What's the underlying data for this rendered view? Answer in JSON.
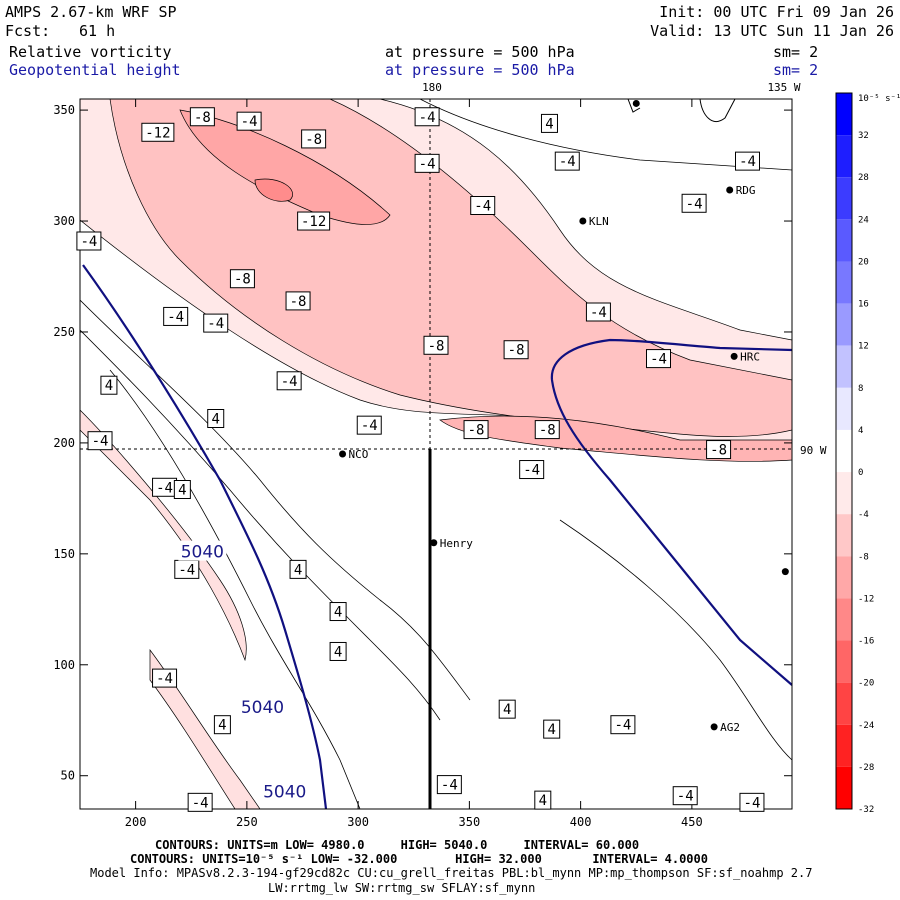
{
  "header": {
    "model": "AMPS 2.67-km WRF SP",
    "forecast_label": "Fcst:",
    "forecast_hours": "61 h",
    "init": "Init: 00 UTC Fri 09 Jan 26",
    "valid": "Valid: 13 UTC Sun 11 Jan 26",
    "field1": {
      "name": "Relative vorticity",
      "level": "at pressure =  500 hPa",
      "sm": "sm= 2"
    },
    "field2": {
      "name": "Geopotential height",
      "level": "at pressure =  500 hPa",
      "sm": "sm= 2"
    }
  },
  "axes": {
    "x_ticks": [
      "200",
      "250",
      "300",
      "350",
      "400",
      "450"
    ],
    "y_ticks": [
      "350",
      "300",
      "250",
      "200",
      "150",
      "100",
      "50"
    ],
    "x_range": [
      175,
      495
    ],
    "y_range": [
      35,
      355
    ]
  },
  "meridians": {
    "top_180": "180",
    "top_135w": "135 W",
    "right_90w": "90 W"
  },
  "stations": [
    {
      "name": "RDG",
      "x": 467,
      "y": 314
    },
    {
      "name": "KLN",
      "x": 401,
      "y": 300
    },
    {
      "name": "HRC",
      "x": 469,
      "y": 239
    },
    {
      "name": "NCO",
      "x": 293,
      "y": 195
    },
    {
      "name": "Henry",
      "x": 334,
      "y": 155
    },
    {
      "name": "AG2",
      "x": 460,
      "y": 72
    }
  ],
  "extra_points": [
    {
      "x": 425,
      "y": 353
    },
    {
      "x": 492,
      "y": 142
    }
  ],
  "height_labels": [
    {
      "text": "5040",
      "x": 230,
      "y": 151
    },
    {
      "text": "5040",
      "x": 257,
      "y": 81
    },
    {
      "text": "5040",
      "x": 267,
      "y": 43
    }
  ],
  "vort_labels": [
    {
      "text": "-8",
      "x": 230,
      "y": 347
    },
    {
      "text": "-4",
      "x": 251,
      "y": 345
    },
    {
      "text": "-4",
      "x": 331,
      "y": 347
    },
    {
      "text": "4",
      "x": 386,
      "y": 344
    },
    {
      "text": "-12",
      "x": 210,
      "y": 340
    },
    {
      "text": "-8",
      "x": 280,
      "y": 337
    },
    {
      "text": "-4",
      "x": 331,
      "y": 326
    },
    {
      "text": "-4",
      "x": 394,
      "y": 327
    },
    {
      "text": "-4",
      "x": 475,
      "y": 327
    },
    {
      "text": "-4",
      "x": 451,
      "y": 308
    },
    {
      "text": "-4",
      "x": 356,
      "y": 307
    },
    {
      "text": "-12",
      "x": 280,
      "y": 300
    },
    {
      "text": "-4",
      "x": 179,
      "y": 291
    },
    {
      "text": "-8",
      "x": 248,
      "y": 274
    },
    {
      "text": "-8",
      "x": 273,
      "y": 264
    },
    {
      "text": "-4",
      "x": 408,
      "y": 259
    },
    {
      "text": "-4",
      "x": 218,
      "y": 257
    },
    {
      "text": "-4",
      "x": 236,
      "y": 254
    },
    {
      "text": "-8",
      "x": 335,
      "y": 244
    },
    {
      "text": "-8",
      "x": 371,
      "y": 242
    },
    {
      "text": "-4",
      "x": 435,
      "y": 238
    },
    {
      "text": "4",
      "x": 188,
      "y": 226
    },
    {
      "text": "-4",
      "x": 269,
      "y": 228
    },
    {
      "text": "4",
      "x": 236,
      "y": 211
    },
    {
      "text": "-4",
      "x": 305,
      "y": 208
    },
    {
      "text": "-8",
      "x": 353,
      "y": 206
    },
    {
      "text": "-8",
      "x": 385,
      "y": 206
    },
    {
      "text": "-4",
      "x": 184,
      "y": 201
    },
    {
      "text": "-8",
      "x": 462,
      "y": 197
    },
    {
      "text": "-4",
      "x": 378,
      "y": 188
    },
    {
      "text": "-4",
      "x": 213,
      "y": 180
    },
    {
      "text": "4",
      "x": 221,
      "y": 179
    },
    {
      "text": "-4",
      "x": 223,
      "y": 143
    },
    {
      "text": "4",
      "x": 273,
      "y": 143
    },
    {
      "text": "4",
      "x": 291,
      "y": 124
    },
    {
      "text": "4",
      "x": 291,
      "y": 106
    },
    {
      "text": "-4",
      "x": 213,
      "y": 94
    },
    {
      "text": "4",
      "x": 367,
      "y": 80
    },
    {
      "text": "4",
      "x": 239,
      "y": 73
    },
    {
      "text": "-4",
      "x": 419,
      "y": 73
    },
    {
      "text": "4",
      "x": 387,
      "y": 71
    },
    {
      "text": "-4",
      "x": 341,
      "y": 46
    },
    {
      "text": "4",
      "x": 383,
      "y": 39
    },
    {
      "text": "-4",
      "x": 447,
      "y": 41
    },
    {
      "text": "-4",
      "x": 229,
      "y": 38
    },
    {
      "text": "-4",
      "x": 477,
      "y": 38
    }
  ],
  "colorbar": {
    "unit": "10⁻⁵ s⁻¹",
    "labels": [
      "32",
      "28",
      "24",
      "20",
      "16",
      "12",
      "8",
      "4",
      "0",
      "-4",
      "-8",
      "-12",
      "-16",
      "-20",
      "-24",
      "-28",
      "-32"
    ],
    "colors": [
      "#0000ff",
      "#1e1eff",
      "#3c3cff",
      "#5a5aff",
      "#7878ff",
      "#9a9aff",
      "#c2c2ff",
      "#e8e8ff",
      "#ffffff",
      "#ffeaea",
      "#ffc8c8",
      "#ffa8a8",
      "#ff8888",
      "#ff6666",
      "#ff4444",
      "#ff2222",
      "#ff0000"
    ]
  },
  "footer": {
    "line1_prefix": "CONTOURS:  UNITS=m  LOW=  4980.0",
    "line1_high": "HIGH=  5040.0",
    "line1_interval": "INTERVAL=  60.000",
    "line2_prefix": "CONTOURS:  UNITS=10⁻⁵ s⁻¹  LOW= -32.000",
    "line2_high": "HIGH=  32.000",
    "line2_interval": "INTERVAL=  4.0000",
    "line3": "Model Info: MPASv8.2.3-194-gf29cd82c CU:cu_grell_freitas PBL:bl_mynn MP:mp_thompson SF:sf_noahmp 2.7",
    "line4": "LW:rrtmg_lw SW:rrtmg_sw SFLAY:sf_mynn"
  }
}
